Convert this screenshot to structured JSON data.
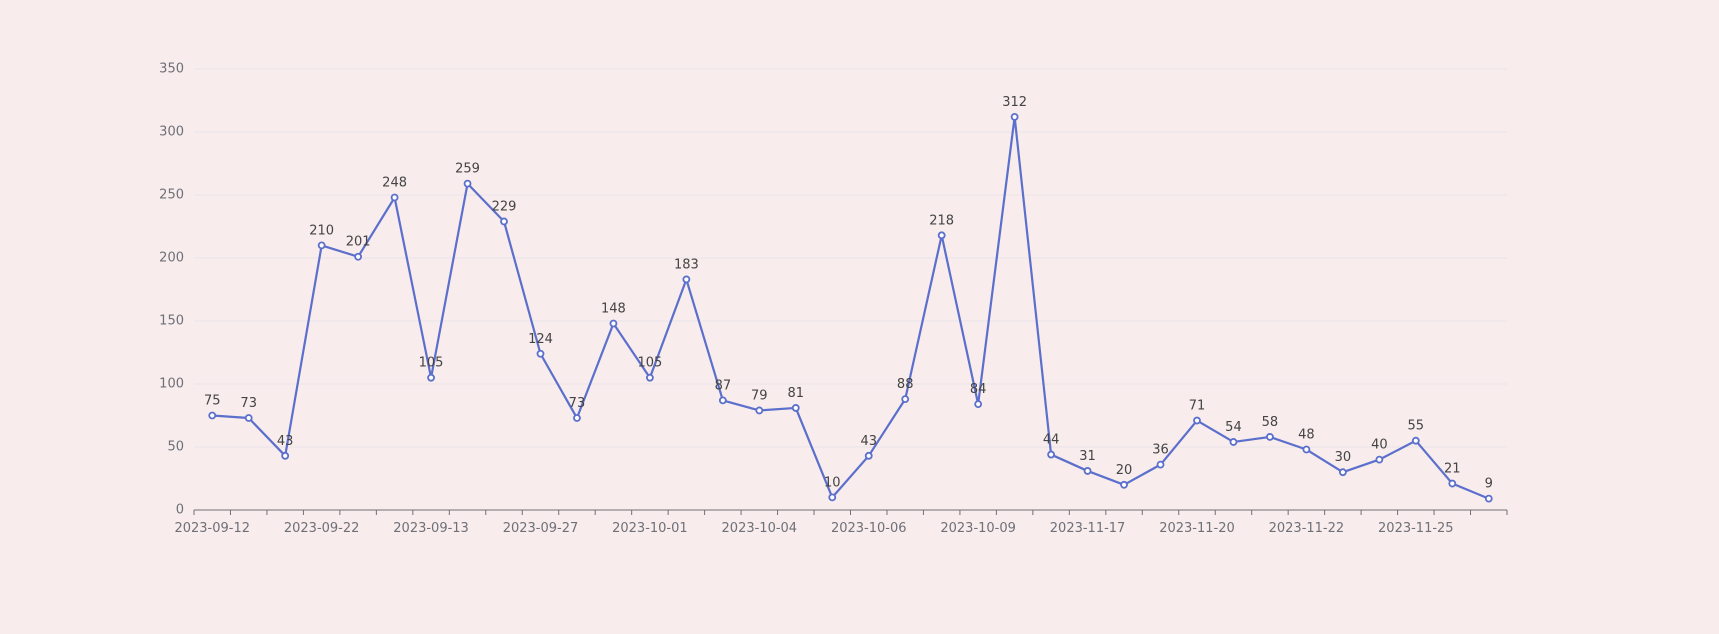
{
  "chart_data": {
    "type": "line",
    "title": "",
    "xlabel": "",
    "ylabel": "",
    "ylim": [
      0,
      350
    ],
    "yticks": [
      0,
      50,
      100,
      150,
      200,
      250,
      300,
      350
    ],
    "grid": true,
    "legend": "none",
    "categories": [
      "2023-09-12",
      "",
      "",
      "2023-09-22",
      "",
      "",
      "2023-09-13",
      "",
      "",
      "2023-09-27",
      "",
      "",
      "2023-10-01",
      "",
      "",
      "2023-10-04",
      "",
      "",
      "2023-10-06",
      "",
      "",
      "2023-10-09",
      "",
      "",
      "2023-11-17",
      "",
      "",
      "2023-11-20",
      "",
      "",
      "2023-11-22",
      "",
      "",
      "2023-11-25",
      "",
      ""
    ],
    "series": [
      {
        "values": [
          75,
          73,
          43,
          210,
          201,
          248,
          105,
          259,
          229,
          124,
          73,
          148,
          105,
          183,
          87,
          79,
          81,
          10,
          43,
          88,
          218,
          84,
          312,
          44,
          31,
          20,
          36,
          71,
          54,
          58,
          48,
          30,
          40,
          55,
          21,
          9
        ]
      }
    ]
  },
  "colors": {
    "line": "#5b6fcc",
    "background": "#f8ecec"
  }
}
